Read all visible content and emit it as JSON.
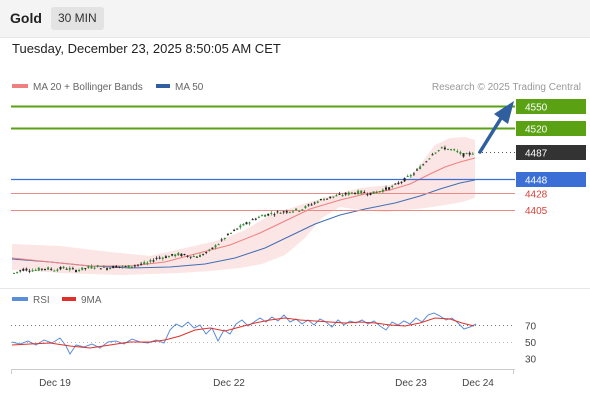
{
  "header": {
    "symbol": "Gold",
    "timeframe": "30 MIN",
    "datetime": "Tuesday, December 23, 2025 8:50:05 AM CET"
  },
  "legend": {
    "ma20_label": "MA 20 + Bollinger Bands",
    "ma50_label": "MA 50",
    "ma20_color": "#f08080",
    "ma50_color": "#2f5f9e",
    "attribution": "Research © 2025 Trading Central"
  },
  "levels": [
    {
      "value": "4550",
      "kind": "target",
      "color": "#5aa214"
    },
    {
      "value": "4520",
      "kind": "target",
      "color": "#5aa214"
    },
    {
      "value": "4487",
      "kind": "current",
      "color": "#333333"
    },
    {
      "value": "4448",
      "kind": "pivot",
      "color": "#3b6fd6"
    },
    {
      "value": "4428",
      "kind": "support",
      "color": "#d9403a"
    },
    {
      "value": "4405",
      "kind": "support",
      "color": "#d9403a"
    }
  ],
  "rsi_panel": {
    "rsi_label": "RSI",
    "ma_label": "9MA",
    "rsi_color": "#5b8ed8",
    "ma_color": "#e0302a",
    "levels": [
      "70",
      "50",
      "30"
    ]
  },
  "x_axis": {
    "labels": [
      "Dec 19",
      "Dec 22",
      "Dec 23",
      "Dec 24"
    ]
  },
  "chart_data": {
    "type": "candlestick",
    "instrument": "Gold",
    "timeframe": "30 MIN",
    "price_levels": [
      4550,
      4520,
      4487,
      4448,
      4428,
      4405
    ],
    "close_path": [
      4312,
      4318,
      4316,
      4319,
      4317,
      4320,
      4316,
      4319,
      4322,
      4319,
      4322,
      4321,
      4324,
      4326,
      4334,
      4336,
      4339,
      4337,
      4336,
      4343,
      4355,
      4368,
      4378,
      4386,
      4394,
      4398,
      4400,
      4402,
      4404,
      4411,
      4418,
      4422,
      4425,
      4428,
      4429,
      4427,
      4432,
      4437,
      4446,
      4455,
      4470,
      4487,
      4493,
      4489,
      4482,
      4487
    ],
    "rsi_levels": [
      70,
      50,
      30
    ]
  }
}
